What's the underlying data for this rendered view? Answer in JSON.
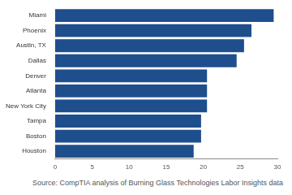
{
  "chart_data": {
    "type": "bar",
    "orientation": "horizontal",
    "categories": [
      "Miami",
      "Phoenix",
      "Austin, TX",
      "Dallas",
      "Denver",
      "Atlanta",
      "New York City",
      "Tampa",
      "Boston",
      "Houston"
    ],
    "values": [
      29.5,
      26.5,
      25.5,
      24.5,
      20.5,
      20.5,
      20.5,
      19.7,
      19.7,
      18.7
    ],
    "color": "#1f4e8c",
    "xlim": [
      0,
      30
    ],
    "xticks": [
      0,
      5,
      10,
      15,
      20,
      25,
      30
    ],
    "grid": false,
    "source": "Source: CompTIA analysis of Burning Glass Technologies Labor Insights data"
  }
}
